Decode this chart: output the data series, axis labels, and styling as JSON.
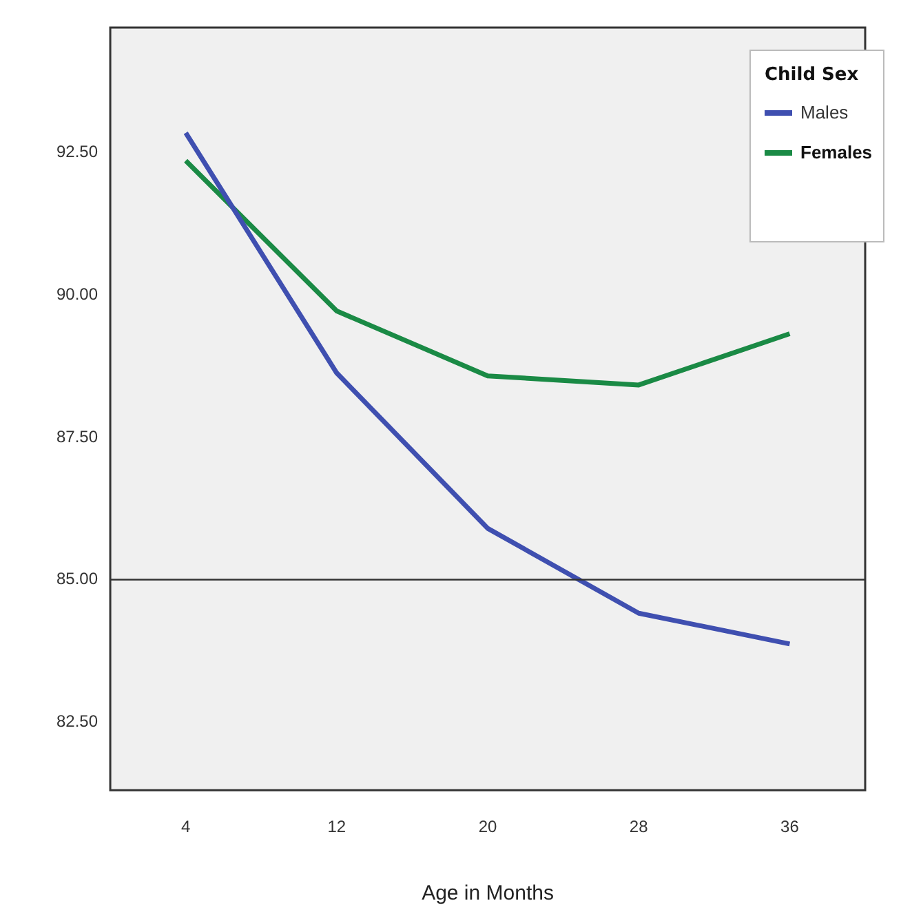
{
  "chart_data": {
    "type": "line",
    "xlabel": "Age in Months",
    "legend_title": "Child Sex",
    "legend": "top right",
    "grid": false,
    "marker": "none",
    "line_style": "solid",
    "categories": [
      "4",
      "12",
      "20",
      "28",
      "36"
    ],
    "ylim": [
      81.3,
      94.7
    ],
    "yticks": [
      {
        "value": 82.5,
        "label": "82.50"
      },
      {
        "value": 85,
        "label": "85.00"
      },
      {
        "value": 87.5,
        "label": "87.50"
      },
      {
        "value": 90,
        "label": "90.00"
      },
      {
        "value": 92.5,
        "label": "92.50"
      }
    ],
    "ref_lines": [
      {
        "axis": "y",
        "value": 85,
        "color": "#333333"
      }
    ],
    "series": [
      {
        "name": "Males",
        "color": "#3f4fb0",
        "values": [
          92.85,
          88.63,
          85.9,
          84.41,
          83.87
        ]
      },
      {
        "name": "Females",
        "color": "#1a8a45",
        "values": [
          92.36,
          89.72,
          88.58,
          88.42,
          89.32
        ]
      }
    ]
  }
}
